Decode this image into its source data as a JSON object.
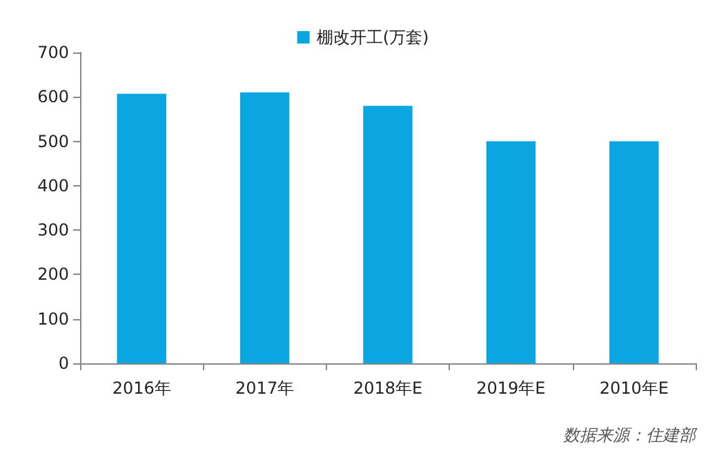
{
  "chart_data": {
    "type": "bar",
    "categories": [
      "2016年",
      "2017年",
      "2018年E",
      "2019年E",
      "2010年E"
    ],
    "series": [
      {
        "name": "棚改开工(万套)",
        "color": "#0ba5e2",
        "values": [
          607,
          610,
          580,
          500,
          500
        ]
      }
    ],
    "ylim": [
      0,
      700
    ],
    "yticks": [
      0,
      100,
      200,
      300,
      400,
      500,
      600,
      700
    ],
    "grid": false,
    "legend": "top",
    "annotations": [
      "数据来源：住建部"
    ]
  }
}
